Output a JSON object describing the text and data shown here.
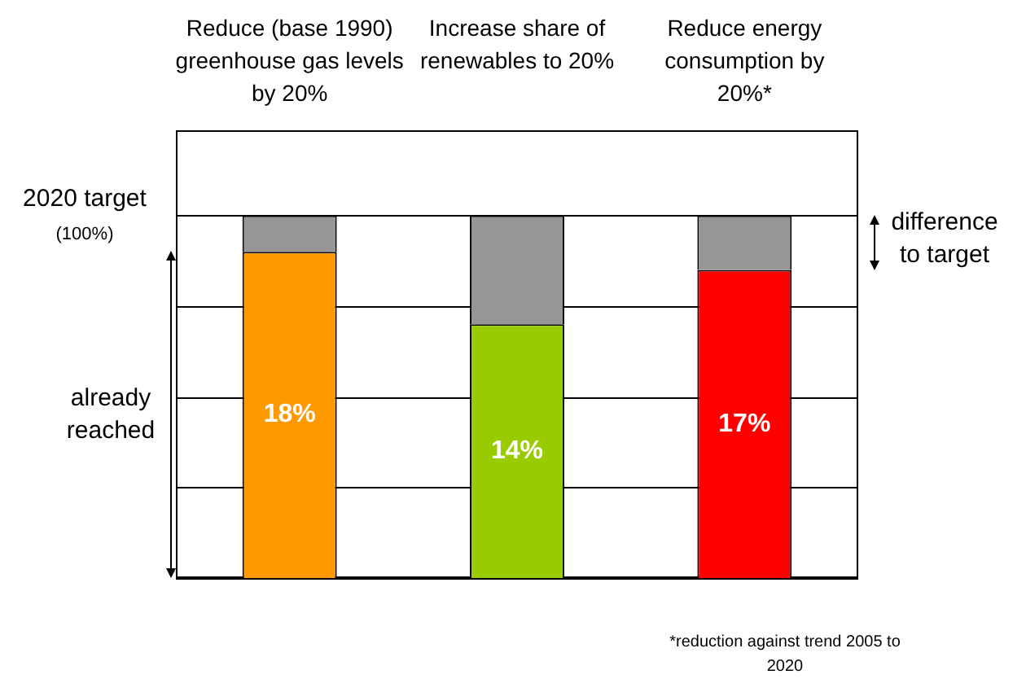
{
  "chart_data": {
    "type": "bar",
    "stacked": true,
    "categories": [
      "Reduce (base 1990) greenhouse gas levels by 20%",
      "Increase share of renewables to 20%",
      "Reduce energy consumption by 20%*"
    ],
    "series": [
      {
        "colors": [
          "#ff9900",
          "#99cc00",
          "#ff0000"
        ],
        "values": [
          18,
          14,
          17
        ],
        "value_labels": [
          "18%",
          "14%",
          "17%"
        ]
      },
      {
        "color": "#969696",
        "values": [
          2,
          6,
          3
        ]
      }
    ],
    "ylim": [
      0,
      24.7
    ],
    "yticks": [
      {
        "value": 0,
        "label": null
      },
      {
        "value": 5,
        "label": null
      },
      {
        "value": 10,
        "label": null
      },
      {
        "value": 15,
        "label": null
      }
    ],
    "grid": "y",
    "legend": false,
    "ref_lines": [
      {
        "axis": "y",
        "value": 20,
        "label": "2020 target",
        "color": "#000000"
      }
    ],
    "annotations": [
      "(100%)",
      "already reached",
      "difference to target",
      "*reduction against trend 2005 to 2020"
    ]
  }
}
